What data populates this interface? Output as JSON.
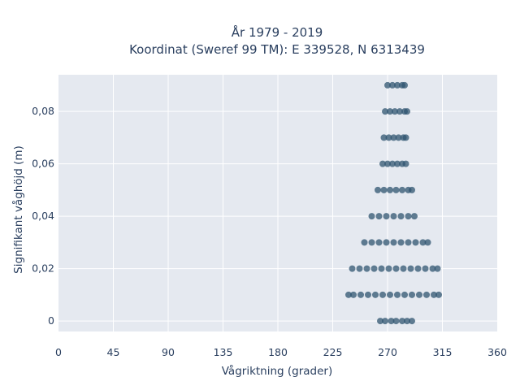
{
  "chart_data": {
    "type": "scatter",
    "title_line1": "År 1979 - 2019",
    "title_line2": "Koordinat (Sweref 99 TM): E 339528, N 6313439",
    "xlabel": "Vågriktning (grader)",
    "ylabel": "Signifikant våghöjd (m)",
    "xlim": [
      0,
      360
    ],
    "ylim": [
      -0.004,
      0.094
    ],
    "x_ticks": [
      0,
      45,
      90,
      135,
      180,
      225,
      270,
      315,
      360
    ],
    "x_tick_labels": [
      "0",
      "45",
      "90",
      "135",
      "180",
      "225",
      "270",
      "315",
      "360"
    ],
    "y_ticks": [
      0,
      0.02,
      0.04,
      0.06,
      0.08
    ],
    "y_tick_labels": [
      "0",
      "0,02",
      "0,04",
      "0,06",
      "0,08"
    ],
    "grid": true,
    "legend": "none",
    "series": [
      {
        "points": [
          [
            264,
            0
          ],
          [
            268,
            0
          ],
          [
            273,
            0
          ],
          [
            277,
            0
          ],
          [
            282,
            0
          ],
          [
            286,
            0
          ],
          [
            290,
            0
          ],
          [
            238,
            0.01
          ],
          [
            242,
            0.01
          ],
          [
            248,
            0.01
          ],
          [
            254,
            0.01
          ],
          [
            260,
            0.01
          ],
          [
            266,
            0.01
          ],
          [
            272,
            0.01
          ],
          [
            278,
            0.01
          ],
          [
            284,
            0.01
          ],
          [
            290,
            0.01
          ],
          [
            296,
            0.01
          ],
          [
            302,
            0.01
          ],
          [
            308,
            0.01
          ],
          [
            312,
            0.01
          ],
          [
            241,
            0.02
          ],
          [
            247,
            0.02
          ],
          [
            253,
            0.02
          ],
          [
            259,
            0.02
          ],
          [
            265,
            0.02
          ],
          [
            271,
            0.02
          ],
          [
            277,
            0.02
          ],
          [
            283,
            0.02
          ],
          [
            289,
            0.02
          ],
          [
            295,
            0.02
          ],
          [
            301,
            0.02
          ],
          [
            307,
            0.02
          ],
          [
            311,
            0.02
          ],
          [
            251,
            0.03
          ],
          [
            257,
            0.03
          ],
          [
            263,
            0.03
          ],
          [
            269,
            0.03
          ],
          [
            275,
            0.03
          ],
          [
            281,
            0.03
          ],
          [
            287,
            0.03
          ],
          [
            293,
            0.03
          ],
          [
            299,
            0.03
          ],
          [
            303,
            0.03
          ],
          [
            257,
            0.04
          ],
          [
            263,
            0.04
          ],
          [
            269,
            0.04
          ],
          [
            275,
            0.04
          ],
          [
            281,
            0.04
          ],
          [
            287,
            0.04
          ],
          [
            292,
            0.04
          ],
          [
            262,
            0.05
          ],
          [
            267,
            0.05
          ],
          [
            272,
            0.05
          ],
          [
            277,
            0.05
          ],
          [
            282,
            0.05
          ],
          [
            287,
            0.05
          ],
          [
            290,
            0.05
          ],
          [
            266,
            0.06
          ],
          [
            270,
            0.06
          ],
          [
            274,
            0.06
          ],
          [
            278,
            0.06
          ],
          [
            282,
            0.06
          ],
          [
            285,
            0.06
          ],
          [
            267,
            0.07
          ],
          [
            271,
            0.07
          ],
          [
            275,
            0.07
          ],
          [
            279,
            0.07
          ],
          [
            283,
            0.07
          ],
          [
            285,
            0.07
          ],
          [
            268,
            0.08
          ],
          [
            272,
            0.08
          ],
          [
            276,
            0.08
          ],
          [
            280,
            0.08
          ],
          [
            284,
            0.08
          ],
          [
            286,
            0.08
          ],
          [
            270,
            0.09
          ],
          [
            274,
            0.09
          ],
          [
            278,
            0.09
          ],
          [
            282,
            0.09
          ],
          [
            284,
            0.09
          ]
        ]
      }
    ],
    "colors": {
      "marker": "#2f5470",
      "plot_bg": "#e5e9f0",
      "grid": "#ffffff",
      "text": "#2a3f5f"
    }
  }
}
